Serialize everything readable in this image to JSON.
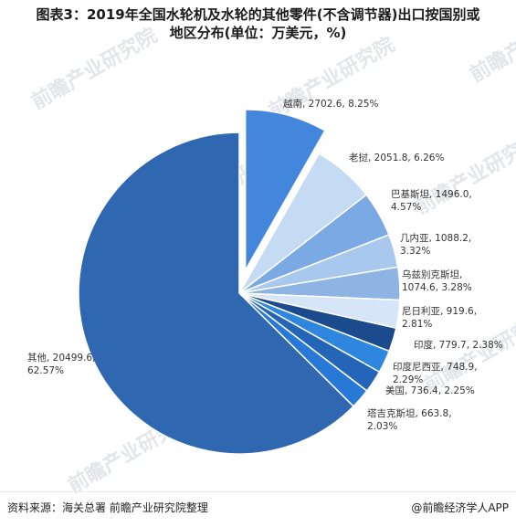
{
  "title_lines": [
    "图表3：2019年全国水轮机及水轮的其他零件(不含调节器)出口按国别或",
    "地区分布(单位：万美元，%)"
  ],
  "source": "资料来源：海关总署 前瞻产业研究院整理",
  "brand": "@前瞻经济学人APP",
  "watermarks": [
    "前瞻产业研究院"
  ],
  "chart_data": {
    "type": "pie",
    "slices": [
      {
        "name": "其他",
        "value": 20499.6,
        "percent": "62.57%",
        "color": "#2f67b0",
        "label_lines": [
          "其他, 20499.6,",
          "62.57%"
        ]
      },
      {
        "name": "越南",
        "value": 2702.6,
        "percent": "8.25%",
        "color": "#4287db",
        "exploded": true,
        "label_lines": [
          "越南, 2702.6, 8.25%"
        ]
      },
      {
        "name": "老挝",
        "value": 2051.8,
        "percent": "6.26%",
        "color": "#c5daf3",
        "label_lines": [
          "老挝, 2051.8, 6.26%"
        ]
      },
      {
        "name": "巴基斯坦",
        "value": 1496.0,
        "percent": "4.57%",
        "color": "#7aa9e3",
        "label_lines": [
          "巴基斯坦, 1496.0,",
          "4.57%"
        ]
      },
      {
        "name": "几内亚",
        "value": 1088.2,
        "percent": "3.32%",
        "color": "#a9c8ee",
        "label_lines": [
          "几内亚, 1088.2,",
          "3.32%"
        ]
      },
      {
        "name": "乌兹别克斯坦",
        "value": 1074.6,
        "percent": "3.28%",
        "color": "#8eb4e3",
        "label_lines": [
          "乌兹别克斯坦,",
          "1074.6, 3.28%"
        ]
      },
      {
        "name": "尼日利亚",
        "value": 919.6,
        "percent": "2.81%",
        "color": "#d6e5f7",
        "label_lines": [
          "尼日利亚, 919.6,",
          "2.81%"
        ]
      },
      {
        "name": "印度",
        "value": 779.7,
        "percent": "2.38%",
        "color": "#1c4b8d",
        "label_lines": [
          "印度, 779.7, 2.38%"
        ]
      },
      {
        "name": "印度尼西亚",
        "value": 748.9,
        "percent": "2.29%",
        "color": "#2e86de",
        "label_lines": [
          "印度尼西亚, 748.9,",
          "2.29%"
        ]
      },
      {
        "name": "美国",
        "value": 736.4,
        "percent": "2.25%",
        "color": "#2565b8",
        "label_lines": [
          "美国, 736.4, 2.25%"
        ]
      },
      {
        "name": "塔吉克斯坦",
        "value": 663.8,
        "percent": "2.03%",
        "color": "#2878d8",
        "label_lines": [
          "塔吉克斯坦, 663.8,",
          "2.03%"
        ]
      }
    ]
  }
}
